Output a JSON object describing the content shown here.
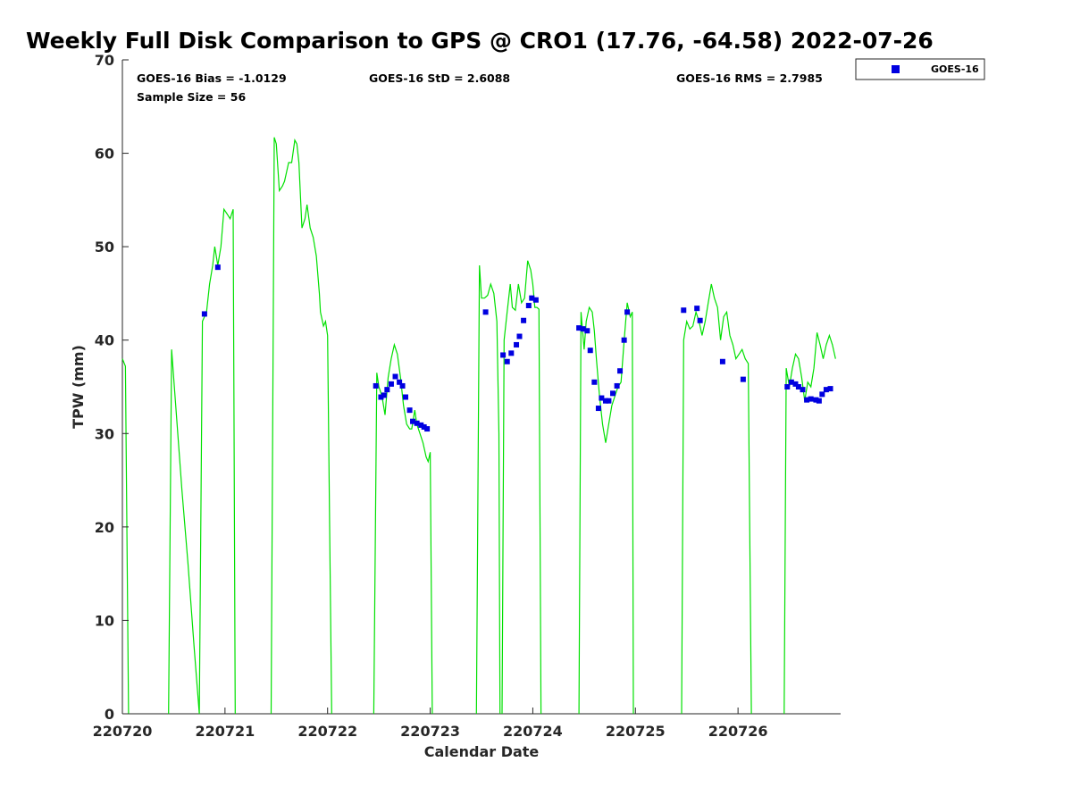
{
  "chart_data": {
    "type": "line",
    "title": "Weekly Full Disk Comparison to GPS @ CRO1 (17.76, -64.58) 2022-07-26",
    "xlabel": "Calendar Date",
    "ylabel": "TPW (mm)",
    "xlim": [
      0,
      7.0
    ],
    "ylim": [
      0,
      70
    ],
    "x_tick_labels": [
      "220720",
      "220721",
      "220722",
      "220723",
      "220724",
      "220725",
      "220726"
    ],
    "x_tick_values": [
      0,
      1,
      2,
      3,
      4,
      5,
      6
    ],
    "y_tick_values": [
      0,
      10,
      20,
      30,
      40,
      50,
      60,
      70
    ],
    "grid": false,
    "legend_position": "top-right",
    "stats": {
      "bias": "GOES-16 Bias = -1.0129",
      "sample_size": "Sample Size = 56",
      "std": "GOES-16 StD = 2.6088",
      "rms": "GOES-16 RMS = 2.7985"
    },
    "series": [
      {
        "name": "GPS",
        "color": "#00e000",
        "style": "line",
        "segments": [
          [
            [
              0.0,
              38
            ],
            [
              0.03,
              37.2
            ],
            [
              0.06,
              0
            ]
          ],
          [
            [
              0.45,
              0
            ],
            [
              0.48,
              39
            ],
            [
              0.52,
              33
            ],
            [
              0.58,
              24
            ],
            [
              0.64,
              16
            ],
            [
              0.7,
              7
            ],
            [
              0.75,
              0
            ]
          ],
          [
            [
              0.75,
              0
            ],
            [
              0.78,
              42
            ],
            [
              0.82,
              43
            ],
            [
              0.85,
              46
            ],
            [
              0.88,
              48
            ],
            [
              0.9,
              50
            ],
            [
              0.93,
              48
            ],
            [
              0.96,
              50
            ],
            [
              0.99,
              54
            ],
            [
              1.02,
              53.5
            ],
            [
              1.05,
              53
            ],
            [
              1.08,
              54
            ],
            [
              1.1,
              0
            ]
          ],
          [
            [
              1.45,
              0
            ],
            [
              1.48,
              61.7
            ],
            [
              1.5,
              61
            ],
            [
              1.53,
              56
            ],
            [
              1.56,
              56.5
            ],
            [
              1.58,
              57
            ],
            [
              1.6,
              58
            ],
            [
              1.62,
              59
            ],
            [
              1.65,
              59
            ],
            [
              1.68,
              61.4
            ],
            [
              1.7,
              61
            ],
            [
              1.72,
              59
            ],
            [
              1.75,
              52
            ],
            [
              1.78,
              53
            ],
            [
              1.8,
              54.5
            ],
            [
              1.83,
              52
            ],
            [
              1.86,
              51
            ],
            [
              1.89,
              49
            ],
            [
              1.92,
              45
            ],
            [
              1.93,
              43
            ],
            [
              1.96,
              41.5
            ],
            [
              1.98,
              42
            ],
            [
              2.0,
              40.5
            ],
            [
              2.02,
              20
            ],
            [
              2.04,
              0
            ]
          ],
          [
            [
              2.45,
              0
            ],
            [
              2.48,
              36.5
            ],
            [
              2.5,
              35
            ],
            [
              2.53,
              34
            ],
            [
              2.56,
              32
            ],
            [
              2.59,
              36
            ],
            [
              2.62,
              38
            ],
            [
              2.65,
              39.5
            ],
            [
              2.68,
              38.5
            ],
            [
              2.71,
              36
            ],
            [
              2.74,
              33
            ],
            [
              2.77,
              31
            ],
            [
              2.8,
              30.5
            ],
            [
              2.82,
              30.5
            ],
            [
              2.85,
              32.5
            ],
            [
              2.87,
              31
            ],
            [
              2.9,
              30
            ],
            [
              2.93,
              29
            ],
            [
              2.96,
              27.5
            ],
            [
              2.98,
              27
            ],
            [
              3.0,
              28
            ],
            [
              3.02,
              0
            ]
          ],
          [
            [
              3.45,
              0
            ],
            [
              3.48,
              48
            ],
            [
              3.5,
              44.5
            ],
            [
              3.53,
              44.5
            ],
            [
              3.56,
              44.8
            ],
            [
              3.59,
              46
            ],
            [
              3.62,
              45
            ],
            [
              3.65,
              42
            ],
            [
              3.67,
              30
            ],
            [
              3.68,
              0
            ]
          ],
          [
            [
              3.7,
              0
            ],
            [
              3.72,
              40
            ],
            [
              3.75,
              43
            ],
            [
              3.78,
              46
            ],
            [
              3.8,
              43.5
            ],
            [
              3.83,
              43.2
            ],
            [
              3.86,
              46
            ],
            [
              3.89,
              44
            ],
            [
              3.92,
              44.5
            ],
            [
              3.95,
              48.5
            ],
            [
              3.98,
              47.5
            ],
            [
              4.0,
              46
            ],
            [
              4.02,
              43.5
            ],
            [
              4.04,
              43.5
            ],
            [
              4.06,
              43.3
            ],
            [
              4.08,
              0
            ]
          ],
          [
            [
              4.45,
              0
            ],
            [
              4.47,
              43
            ],
            [
              4.5,
              39
            ],
            [
              4.52,
              42
            ],
            [
              4.55,
              43.5
            ],
            [
              4.58,
              43
            ],
            [
              4.6,
              41
            ],
            [
              4.62,
              38
            ],
            [
              4.65,
              34
            ],
            [
              4.68,
              31
            ],
            [
              4.71,
              29
            ],
            [
              4.74,
              31
            ],
            [
              4.77,
              33
            ],
            [
              4.8,
              34
            ],
            [
              4.83,
              35
            ],
            [
              4.86,
              35.5
            ],
            [
              4.89,
              40
            ],
            [
              4.92,
              44
            ],
            [
              4.95,
              42.5
            ],
            [
              4.97,
              43
            ],
            [
              4.98,
              0
            ]
          ],
          [
            [
              5.45,
              0
            ],
            [
              5.47,
              40
            ],
            [
              5.5,
              42
            ],
            [
              5.53,
              41.2
            ],
            [
              5.56,
              41.5
            ],
            [
              5.59,
              43
            ],
            [
              5.62,
              42
            ],
            [
              5.65,
              40.5
            ],
            [
              5.68,
              42
            ],
            [
              5.71,
              44
            ],
            [
              5.74,
              46
            ],
            [
              5.77,
              44.5
            ],
            [
              5.8,
              43.5
            ],
            [
              5.83,
              40
            ],
            [
              5.86,
              42.5
            ],
            [
              5.89,
              43
            ],
            [
              5.92,
              40.5
            ],
            [
              5.95,
              39.5
            ],
            [
              5.98,
              38
            ],
            [
              6.01,
              38.5
            ],
            [
              6.04,
              39
            ],
            [
              6.07,
              38
            ],
            [
              6.1,
              37.5
            ],
            [
              6.13,
              0
            ]
          ],
          [
            [
              6.45,
              0
            ],
            [
              6.47,
              37
            ],
            [
              6.5,
              35
            ],
            [
              6.53,
              37
            ],
            [
              6.56,
              38.5
            ],
            [
              6.59,
              38
            ],
            [
              6.62,
              36
            ],
            [
              6.65,
              33.5
            ],
            [
              6.68,
              35.5
            ],
            [
              6.71,
              35
            ],
            [
              6.74,
              37
            ],
            [
              6.77,
              40.8
            ],
            [
              6.8,
              39.5
            ],
            [
              6.83,
              38
            ],
            [
              6.86,
              39.5
            ],
            [
              6.89,
              40.5
            ],
            [
              6.92,
              39.5
            ],
            [
              6.95,
              38
            ]
          ]
        ]
      },
      {
        "name": "GOES-16",
        "color": "#0000e0",
        "style": "marker",
        "points": [
          [
            0.8,
            42.8
          ],
          [
            0.93,
            47.8
          ],
          [
            2.47,
            35.1
          ],
          [
            2.52,
            33.9
          ],
          [
            2.55,
            34.1
          ],
          [
            2.58,
            34.7
          ],
          [
            2.62,
            35.3
          ],
          [
            2.66,
            36.1
          ],
          [
            2.7,
            35.5
          ],
          [
            2.73,
            35.1
          ],
          [
            2.76,
            33.9
          ],
          [
            2.8,
            32.5
          ],
          [
            2.83,
            31.3
          ],
          [
            2.87,
            31.1
          ],
          [
            2.91,
            30.9
          ],
          [
            2.94,
            30.7
          ],
          [
            2.97,
            30.5
          ],
          [
            3.54,
            43
          ],
          [
            3.71,
            38.4
          ],
          [
            3.75,
            37.7
          ],
          [
            3.79,
            38.6
          ],
          [
            3.84,
            39.5
          ],
          [
            3.87,
            40.4
          ],
          [
            3.91,
            42.1
          ],
          [
            3.96,
            43.7
          ],
          [
            3.99,
            44.5
          ],
          [
            4.03,
            44.3
          ],
          [
            4.45,
            41.3
          ],
          [
            4.49,
            41.2
          ],
          [
            4.53,
            41
          ],
          [
            4.56,
            38.9
          ],
          [
            4.6,
            35.5
          ],
          [
            4.64,
            32.7
          ],
          [
            4.67,
            33.8
          ],
          [
            4.71,
            33.5
          ],
          [
            4.74,
            33.5
          ],
          [
            4.78,
            34.3
          ],
          [
            4.82,
            35.1
          ],
          [
            4.85,
            36.7
          ],
          [
            4.89,
            40
          ],
          [
            4.92,
            43
          ],
          [
            5.47,
            43.2
          ],
          [
            5.6,
            43.4
          ],
          [
            5.63,
            42.1
          ],
          [
            5.85,
            37.7
          ],
          [
            6.05,
            35.8
          ],
          [
            6.48,
            35
          ],
          [
            6.52,
            35.5
          ],
          [
            6.56,
            35.3
          ],
          [
            6.59,
            35
          ],
          [
            6.63,
            34.7
          ],
          [
            6.67,
            33.6
          ],
          [
            6.71,
            33.7
          ],
          [
            6.76,
            33.6
          ],
          [
            6.79,
            33.5
          ],
          [
            6.82,
            34.2
          ],
          [
            6.86,
            34.7
          ],
          [
            6.9,
            34.8
          ]
        ]
      }
    ]
  }
}
